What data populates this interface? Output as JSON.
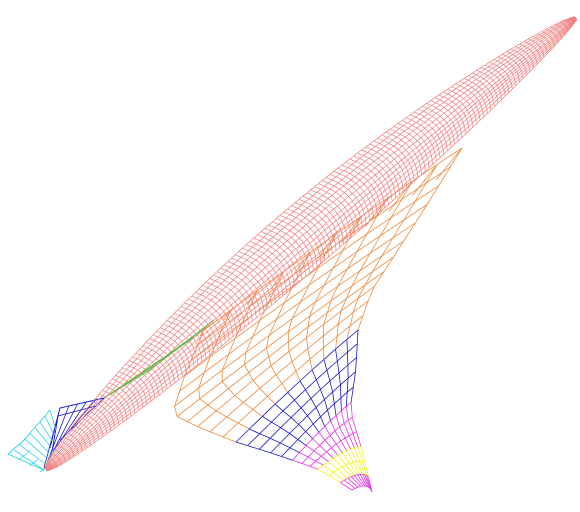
{
  "model": {
    "components": [
      {
        "id": "fuselage",
        "color": "#f08080"
      },
      {
        "id": "inboard-wing",
        "color": "#f08a3c"
      },
      {
        "id": "mid-wing",
        "color": "#1a1acc"
      },
      {
        "id": "outboard-wing",
        "color": "#e632e6"
      },
      {
        "id": "wing-tip",
        "color": "#f5f51e"
      },
      {
        "id": "canard",
        "color": "#32c832"
      },
      {
        "id": "tail",
        "color": "#32d2e6"
      }
    ]
  }
}
